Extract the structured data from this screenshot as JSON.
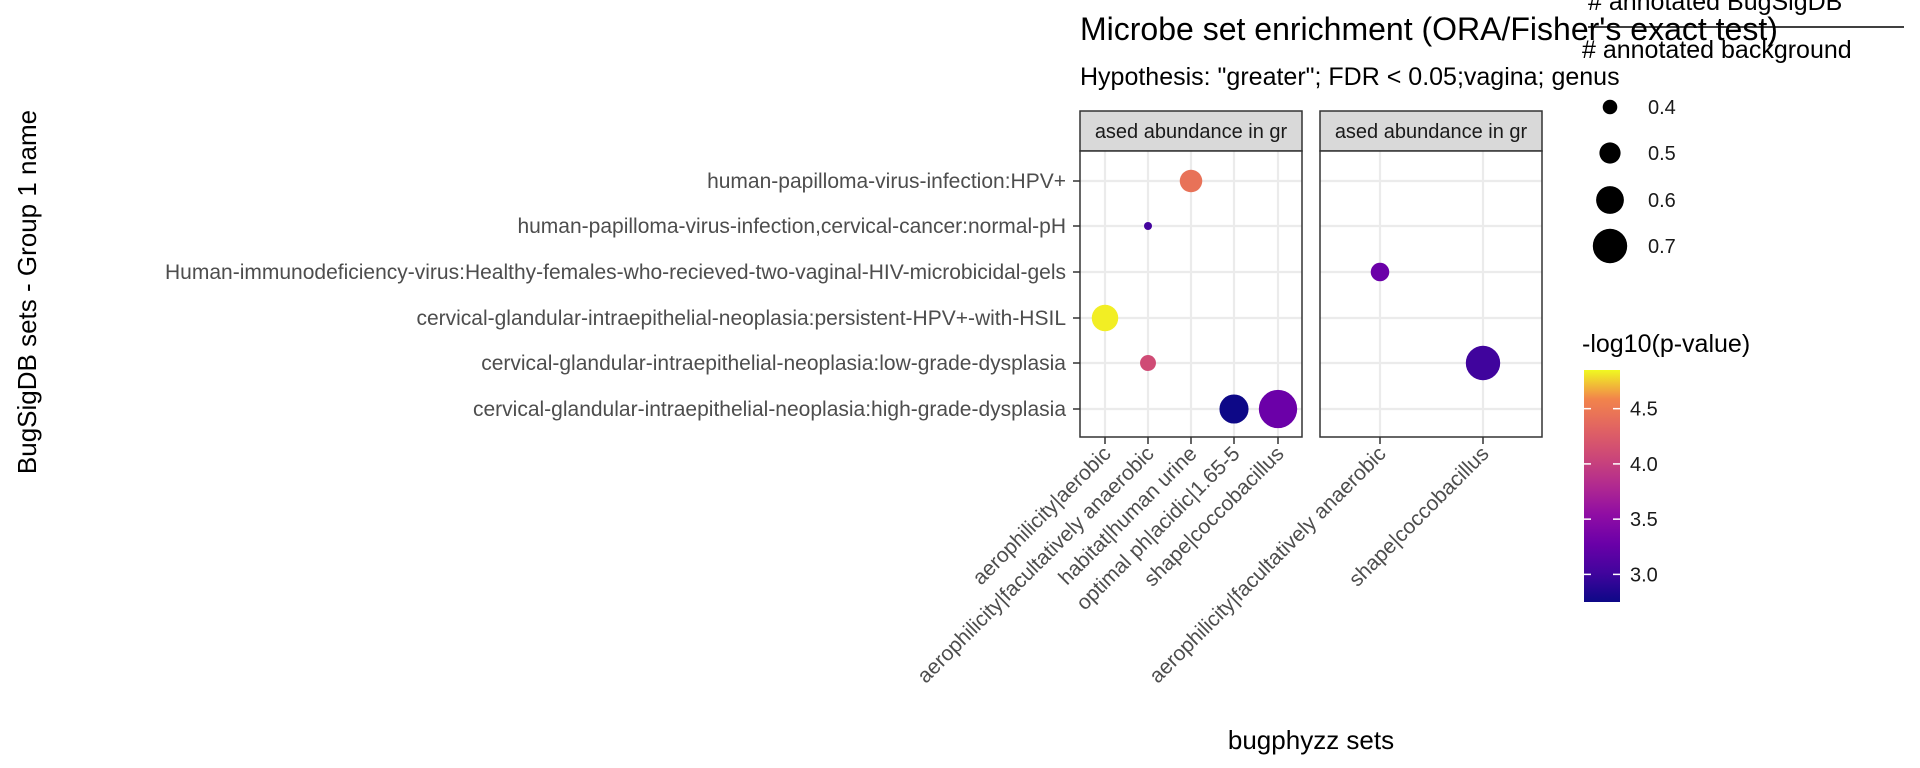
{
  "chart_data": {
    "type": "scatter",
    "title": "Microbe set enrichment (ORA/Fisher's exact test)",
    "subtitle": "Hypothesis: \"greater\"; FDR < 0.05;vagina; genus",
    "xlabel": "bugphyzz sets",
    "ylabel": "BugSigDB sets - Group 1 name",
    "grid": true,
    "y_categories": [
      "human-papilloma-virus-infection:HPV+",
      "human-papilloma-virus-infection,cervical-cancer:normal-pH",
      "Human-immunodeficiency-virus:Healthy-females-who-recieved-two-vaginal-HIV-microbicidal-gels",
      "cervical-glandular-intraepithelial-neoplasia:persistent-HPV+-with-HSIL",
      "cervical-glandular-intraepithelial-neoplasia:low-grade-dysplasia",
      "cervical-glandular-intraepithelial-neoplasia:high-grade-dysplasia"
    ],
    "panels": [
      {
        "strip": "ased abundance in gr",
        "x_categories": [
          "aerophilicity|aerobic",
          "aerophilicity|facultatively anaerobic",
          "habitat|human urine",
          "optimal ph|acidic|1.65-5",
          "shape|coccobacillus"
        ],
        "points": [
          {
            "x": "habitat|human urine",
            "y": "human-papilloma-virus-infection:HPV+",
            "size": 0.52,
            "color": 4.25
          },
          {
            "x": "aerophilicity|facultatively anaerobic",
            "y": "human-papilloma-virus-infection,cervical-cancer:normal-pH",
            "size": 0.3,
            "color": 3.0
          },
          {
            "x": "aerophilicity|aerobic",
            "y": "cervical-glandular-intraepithelial-neoplasia:persistent-HPV+-with-HSIL",
            "size": 0.58,
            "color": 4.82
          },
          {
            "x": "aerophilicity|facultatively anaerobic",
            "y": "cervical-glandular-intraepithelial-neoplasia:low-grade-dysplasia",
            "size": 0.42,
            "color": 3.95
          },
          {
            "x": "optimal ph|acidic|1.65-5",
            "y": "cervical-glandular-intraepithelial-neoplasia:high-grade-dysplasia",
            "size": 0.62,
            "color": 2.75
          },
          {
            "x": "shape|coccobacillus",
            "y": "cervical-glandular-intraepithelial-neoplasia:high-grade-dysplasia",
            "size": 0.76,
            "color": 3.22
          }
        ]
      },
      {
        "strip": "ased abundance in gr",
        "x_categories": [
          "aerophilicity|facultatively anaerobic",
          "shape|coccobacillus"
        ],
        "points": [
          {
            "x": "aerophilicity|facultatively anaerobic",
            "y": "Human-immunodeficiency-virus:Healthy-females-who-recieved-two-vaginal-HIV-microbicidal-gels",
            "size": 0.46,
            "color": 3.22
          },
          {
            "x": "shape|coccobacillus",
            "y": "cervical-glandular-intraepithelial-neoplasia:low-grade-dysplasia",
            "size": 0.7,
            "color": 2.98
          }
        ]
      }
    ],
    "size_legend": {
      "title_line1": "# annotated BugSigDB",
      "title_line2": "# annotated background",
      "breaks": [
        0.4,
        0.5,
        0.6,
        0.7
      ],
      "labels": [
        "0.4",
        "0.5",
        "0.6",
        "0.7"
      ]
    },
    "color_legend": {
      "title": "-log10(p-value)",
      "scale": "plasma",
      "range": [
        2.75,
        4.85
      ],
      "breaks": [
        3.0,
        3.5,
        4.0,
        4.5
      ],
      "labels": [
        "3.0",
        "3.5",
        "4.0",
        "4.5"
      ]
    }
  }
}
